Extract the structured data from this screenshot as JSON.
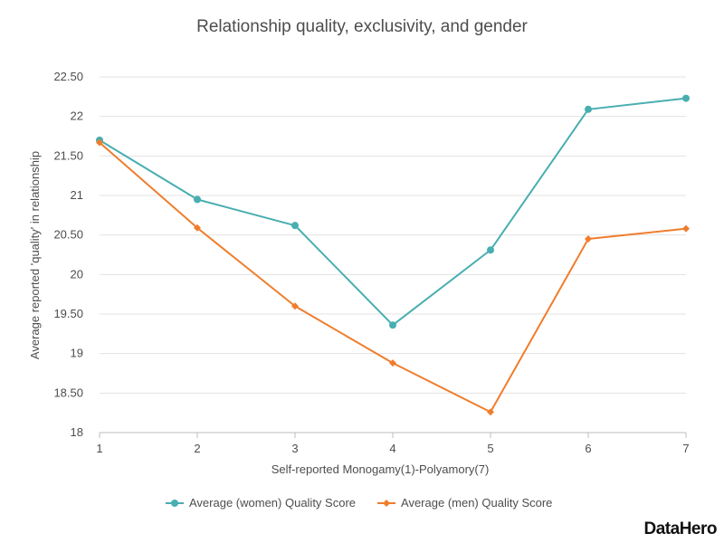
{
  "chart_data": {
    "type": "line",
    "title": "Relationship quality, exclusivity, and gender",
    "xlabel": "Self-reported Monogamy(1)-Polyamory(7)",
    "ylabel": "Average reported 'quality' in relationship",
    "x": [
      1,
      2,
      3,
      4,
      5,
      6,
      7
    ],
    "x_tick_labels": [
      "1",
      "2",
      "3",
      "4",
      "5",
      "6",
      "7"
    ],
    "ylim": [
      18,
      22.5
    ],
    "y_ticks": [
      18,
      18.5,
      19,
      19.5,
      20,
      20.5,
      21,
      21.5,
      22,
      22.5
    ],
    "y_tick_labels": [
      "18",
      "18.50",
      "19",
      "19.50",
      "20",
      "20.50",
      "21",
      "21.50",
      "22",
      "22.50"
    ],
    "grid": true,
    "legend_position": "bottom",
    "series": [
      {
        "name": "Average (women) Quality Score",
        "color": "#48aeb0",
        "marker": "circle",
        "values": [
          21.7,
          20.95,
          20.62,
          19.36,
          20.31,
          22.09,
          22.23
        ]
      },
      {
        "name": "Average (men) Quality Score",
        "color": "#ef7d2d",
        "marker": "diamond",
        "values": [
          21.67,
          20.59,
          19.6,
          18.88,
          18.26,
          20.45,
          20.58
        ]
      }
    ]
  },
  "branding": {
    "logo_text": "DataHero"
  }
}
